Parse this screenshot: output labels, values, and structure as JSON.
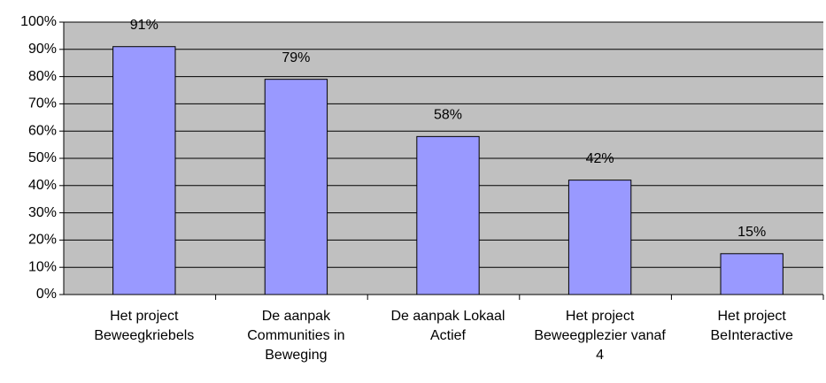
{
  "chart_data": {
    "type": "bar",
    "categories": [
      "Het project Beweegkriebels",
      "De aanpak Communities in Beweging",
      "De aanpak Lokaal Actief",
      "Het project Beweegplezier vanaf 4",
      "Het project BeInteractive"
    ],
    "values": [
      91,
      79,
      58,
      42,
      15
    ],
    "value_labels": [
      "91%",
      "79%",
      "58%",
      "42%",
      "15%"
    ],
    "color": "#9999ff",
    "ylim": [
      0,
      100
    ],
    "yticks": [
      {
        "value": 0,
        "label": "0%"
      },
      {
        "value": 10,
        "label": "10%"
      },
      {
        "value": 20,
        "label": "20%"
      },
      {
        "value": 30,
        "label": "30%"
      },
      {
        "value": 40,
        "label": "40%"
      },
      {
        "value": 50,
        "label": "50%"
      },
      {
        "value": 60,
        "label": "60%"
      },
      {
        "value": 70,
        "label": "70%"
      },
      {
        "value": 80,
        "label": "80%"
      },
      {
        "value": 90,
        "label": "90%"
      },
      {
        "value": 100,
        "label": "100%"
      }
    ],
    "grid": true
  }
}
